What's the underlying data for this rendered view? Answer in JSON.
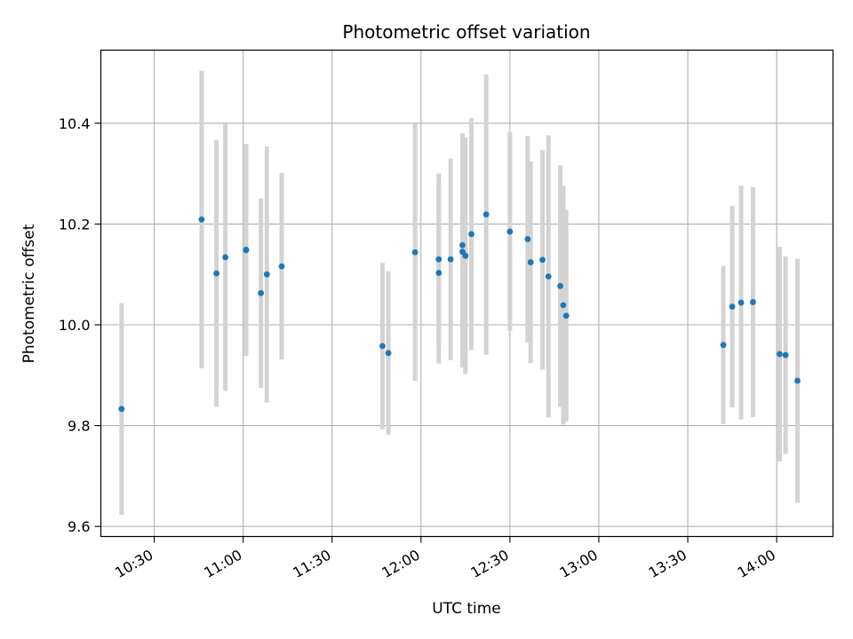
{
  "chart_data": {
    "type": "scatter",
    "title": "Photometric offset variation",
    "xlabel": "UTC time",
    "ylabel": "Photometric offset",
    "x_ticks": [
      "10:30",
      "11:00",
      "11:30",
      "12:00",
      "12:30",
      "13:00",
      "13:30",
      "14:00"
    ],
    "y_ticks": [
      "9.6",
      "9.8",
      "10.0",
      "10.2",
      "10.4"
    ],
    "xlim": [
      "10:12",
      "14:19"
    ],
    "ylim": [
      9.58,
      10.545
    ],
    "grid": true,
    "colors": {
      "marker": "#1f77b4",
      "errorbar": "#d3d3d3",
      "grid": "#b0b0b0"
    },
    "series": [
      {
        "points": [
          {
            "x": "10:19",
            "y": 9.833,
            "yerr": 0.21
          },
          {
            "x": "10:46",
            "y": 10.209,
            "yerr": 0.295
          },
          {
            "x": "10:51",
            "y": 10.102,
            "yerr": 0.265
          },
          {
            "x": "10:54",
            "y": 10.134,
            "yerr": 0.265
          },
          {
            "x": "11:01",
            "y": 10.148,
            "yerr": 0.21
          },
          {
            "x": "11:01",
            "y": 10.149,
            "yerr": 0.21
          },
          {
            "x": "11:06",
            "y": 10.063,
            "yerr": 0.188
          },
          {
            "x": "11:08",
            "y": 10.1,
            "yerr": 0.254
          },
          {
            "x": "11:13",
            "y": 10.116,
            "yerr": 0.185
          },
          {
            "x": "11:47",
            "y": 9.958,
            "yerr": 0.165
          },
          {
            "x": "11:49",
            "y": 9.944,
            "yerr": 0.162
          },
          {
            "x": "11:58",
            "y": 10.144,
            "yerr": 0.255
          },
          {
            "x": "12:06",
            "y": 10.13,
            "yerr": 0.17
          },
          {
            "x": "12:06",
            "y": 10.103,
            "yerr": 0.18
          },
          {
            "x": "12:10",
            "y": 10.13,
            "yerr": 0.2
          },
          {
            "x": "12:14",
            "y": 10.158,
            "yerr": 0.222
          },
          {
            "x": "12:14",
            "y": 10.145,
            "yerr": 0.23
          },
          {
            "x": "12:15",
            "y": 10.137,
            "yerr": 0.235
          },
          {
            "x": "12:17",
            "y": 10.18,
            "yerr": 0.23
          },
          {
            "x": "12:22",
            "y": 10.219,
            "yerr": 0.278
          },
          {
            "x": "12:30",
            "y": 10.185,
            "yerr": 0.197
          },
          {
            "x": "12:36",
            "y": 10.17,
            "yerr": 0.205
          },
          {
            "x": "12:37",
            "y": 10.124,
            "yerr": 0.2
          },
          {
            "x": "12:41",
            "y": 10.129,
            "yerr": 0.218
          },
          {
            "x": "12:43",
            "y": 10.096,
            "yerr": 0.28
          },
          {
            "x": "12:47",
            "y": 10.077,
            "yerr": 0.24
          },
          {
            "x": "12:48",
            "y": 10.039,
            "yerr": 0.237
          },
          {
            "x": "12:49",
            "y": 10.018,
            "yerr": 0.21
          },
          {
            "x": "13:42",
            "y": 9.96,
            "yerr": 0.157
          },
          {
            "x": "13:45",
            "y": 10.036,
            "yerr": 0.2
          },
          {
            "x": "13:48",
            "y": 10.044,
            "yerr": 0.232
          },
          {
            "x": "13:52",
            "y": 10.045,
            "yerr": 0.228
          },
          {
            "x": "14:01",
            "y": 9.942,
            "yerr": 0.213
          },
          {
            "x": "14:03",
            "y": 9.94,
            "yerr": 0.196
          },
          {
            "x": "14:07",
            "y": 9.889,
            "yerr": 0.242
          }
        ]
      }
    ]
  }
}
